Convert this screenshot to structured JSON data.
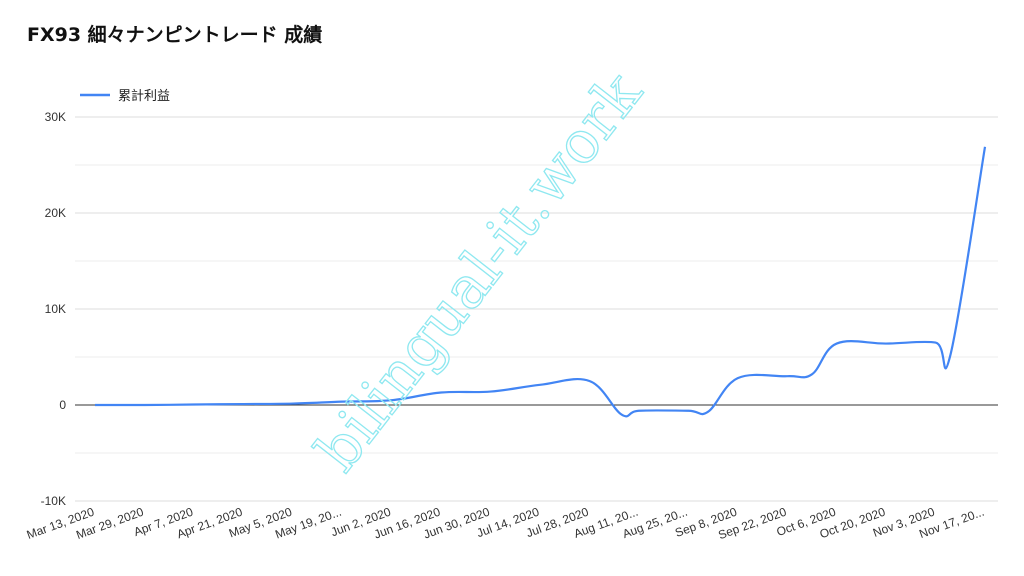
{
  "chart_data": {
    "type": "line",
    "title": "FX93 細々ナンピントレード 成績",
    "xlabel": "",
    "ylabel": "",
    "ylim": [
      -10000,
      30000
    ],
    "yticks": [
      -10000,
      0,
      10000,
      20000,
      30000
    ],
    "ytick_labels": [
      "-10K",
      "0",
      "10K",
      "20K",
      "30K"
    ],
    "grid": true,
    "legend_position": "top-left",
    "categories": [
      "Mar 13, 2020",
      "Mar 29, 2020",
      "Apr 7, 2020",
      "Apr 21, 2020",
      "May 5, 2020",
      "May 19, 20...",
      "Jun 2, 2020",
      "Jun 16, 2020",
      "Jun 30, 2020",
      "Jul 14, 2020",
      "Jul 28, 2020",
      "Aug 11, 20...",
      "Aug 25, 20...",
      "Sep 8, 2020",
      "Sep 22, 2020",
      "Oct 6, 2020",
      "Oct 20, 2020",
      "Nov 3, 2020",
      "Nov 17, 20..."
    ],
    "series": [
      {
        "name": "累計利益",
        "color": "#4285f4",
        "x": [
          0,
          1,
          2,
          3,
          4,
          5,
          6,
          7,
          8,
          9,
          10,
          10.65,
          11,
          12,
          12.4,
          13,
          14,
          14.5,
          15,
          16,
          17,
          17.3,
          18
        ],
        "values": [
          0,
          0,
          50,
          100,
          150,
          350,
          500,
          1300,
          1400,
          2100,
          2500,
          -1000,
          -600,
          -600,
          -700,
          2800,
          3000,
          3200,
          6400,
          6400,
          6500,
          5200,
          26900
        ]
      }
    ]
  },
  "watermark": "bilingual-it.work"
}
